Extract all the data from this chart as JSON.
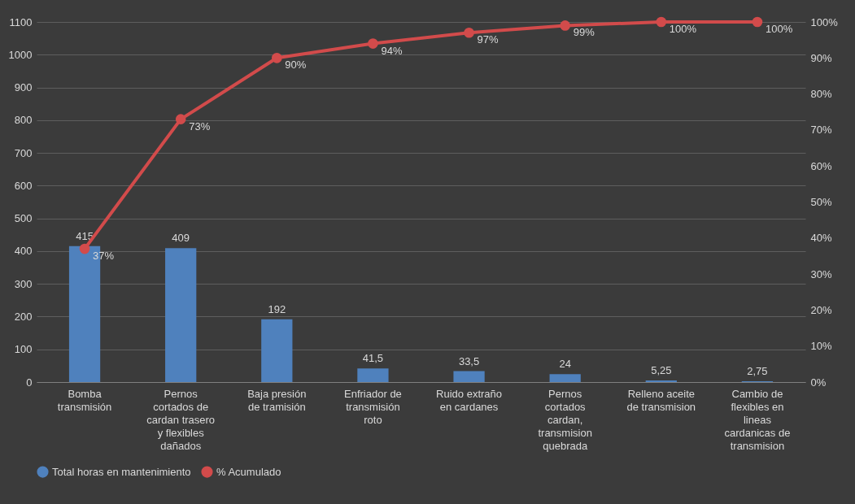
{
  "chart_data": {
    "type": "bar",
    "categories": [
      "Bomba transmisión",
      "Pernos cortados de cardan trasero y flexibles dañados",
      "Baja presión de tramisión",
      "Enfriador de transmisión roto",
      "Ruido extraño en cardanes",
      "Pernos cortados cardan, transmision quebrada",
      "Relleno aceite de transmision",
      "Cambio  de flexibles en lineas cardanicas de transmision"
    ],
    "series": [
      {
        "name": "Total horas en mantenimiento",
        "color": "#4f81bd",
        "values": [
          415,
          409,
          192,
          41.5,
          33.5,
          24,
          5.25,
          2.75
        ],
        "value_labels": [
          "415",
          "409",
          "192",
          "41,5",
          "33,5",
          "24",
          "5,25",
          "2,75"
        ]
      },
      {
        "name": "% Acumulado",
        "type": "line",
        "axis": "y2",
        "color": "#d24b4b",
        "values": [
          37,
          73,
          90,
          94,
          97,
          99,
          100,
          100
        ],
        "value_labels": [
          "37%",
          "73%",
          "90%",
          "94%",
          "97%",
          "99%",
          "100%",
          "100%"
        ]
      }
    ],
    "ylim": [
      0,
      1100
    ],
    "yticks": [
      0,
      100,
      200,
      300,
      400,
      500,
      600,
      700,
      800,
      900,
      1000,
      1100
    ],
    "y2lim": [
      0,
      100
    ],
    "y2ticks": [
      {
        "value": 0,
        "label": "0%"
      },
      {
        "value": 10,
        "label": "10%"
      },
      {
        "value": 20,
        "label": "20%"
      },
      {
        "value": 30,
        "label": "30%"
      },
      {
        "value": 40,
        "label": "40%"
      },
      {
        "value": 50,
        "label": "50%"
      },
      {
        "value": 60,
        "label": "60%"
      },
      {
        "value": 70,
        "label": "70%"
      },
      {
        "value": 80,
        "label": "80%"
      },
      {
        "value": 90,
        "label": "90%"
      },
      {
        "value": 100,
        "label": "100%"
      }
    ],
    "grid": "y",
    "legend": "bottom",
    "marker": "circle",
    "line_style": "solid"
  }
}
